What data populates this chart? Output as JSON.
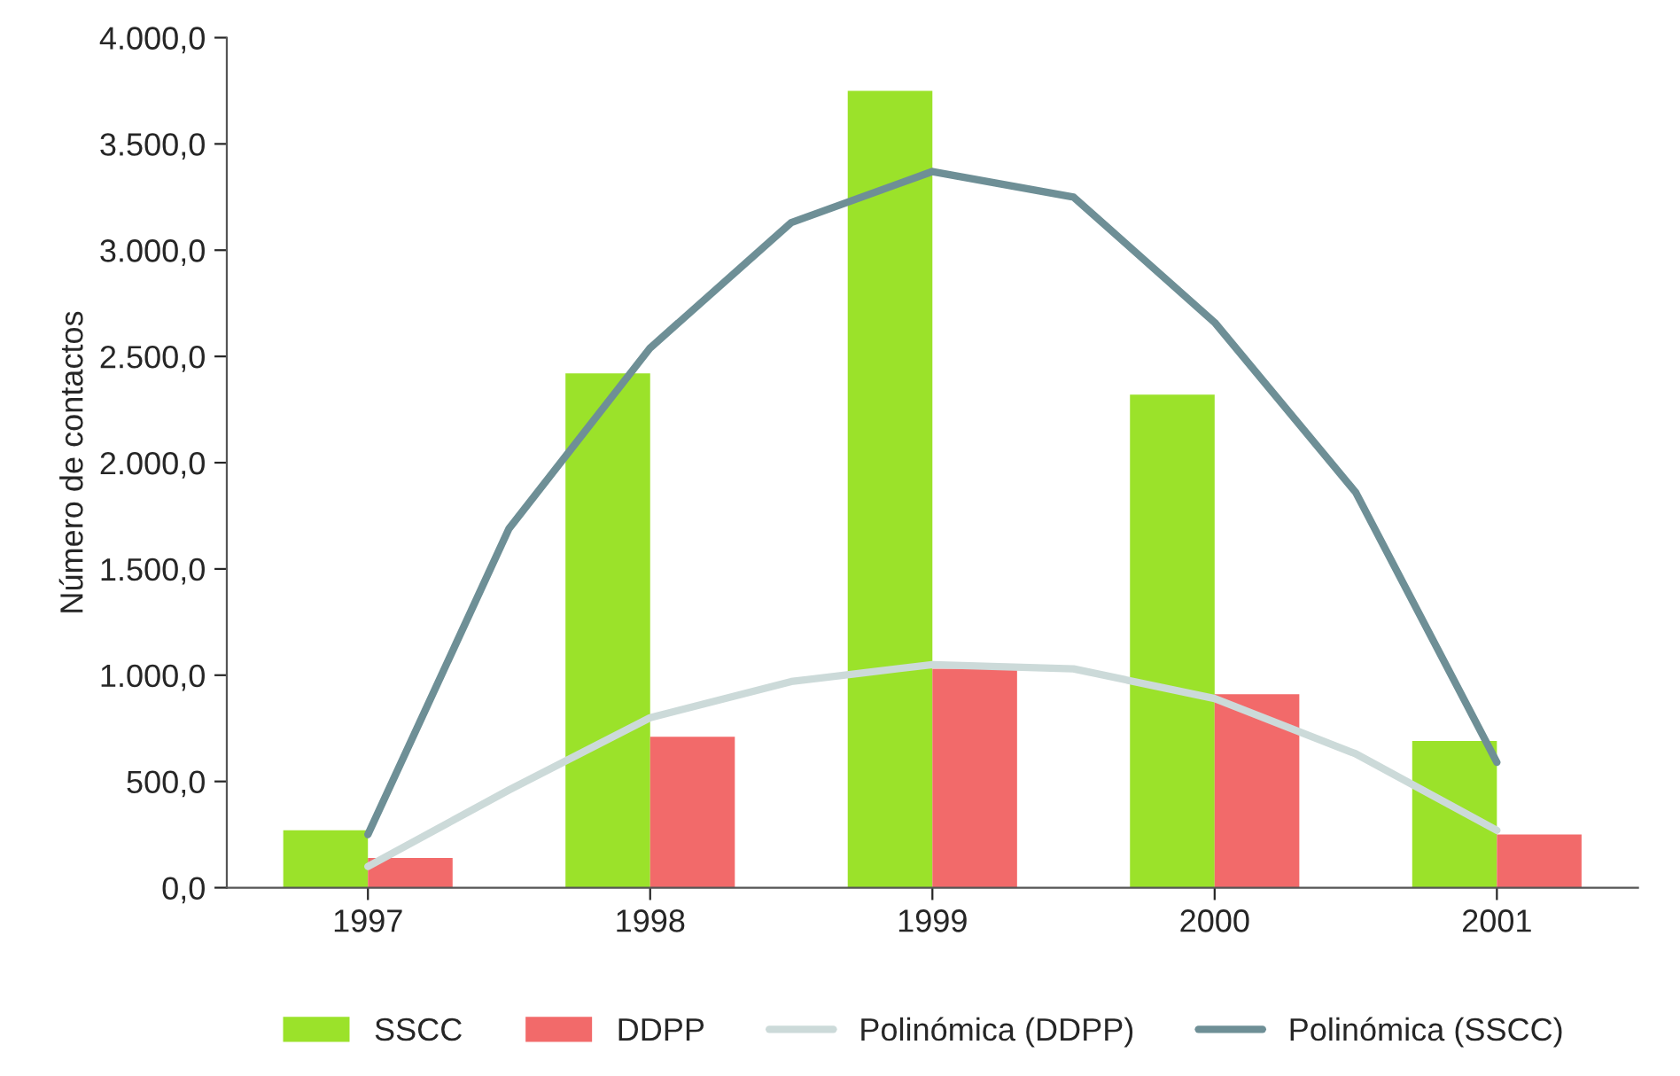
{
  "chart_data": {
    "type": "bar",
    "ylabel": "Número de contactos",
    "x": [
      1997,
      1998,
      1999,
      2000,
      2001
    ],
    "series": [
      {
        "name": "SSCC",
        "color": "#9be22a",
        "values": [
          270,
          2420,
          3750,
          2320,
          690
        ]
      },
      {
        "name": "DDPP",
        "color": "#f26a6a",
        "values": [
          140,
          710,
          1030,
          910,
          250
        ]
      },
      {
        "name": "Polinómica (DDPP)",
        "type": "line",
        "color": "#ccdad9",
        "x": [
          1997,
          1997.5,
          1998,
          1998.5,
          1999,
          1999.5,
          2000,
          2000.5,
          2001
        ],
        "values": [
          100,
          460,
          800,
          970,
          1050,
          1030,
          890,
          630,
          270
        ]
      },
      {
        "name": "Polinómica (SSCC)",
        "type": "line",
        "color": "#6e8f96",
        "x": [
          1997,
          1997.5,
          1998,
          1998.5,
          1999,
          1999.5,
          2000,
          2000.5,
          2001
        ],
        "values": [
          250,
          1690,
          2540,
          3130,
          3370,
          3250,
          2660,
          1860,
          590
        ]
      }
    ],
    "xlim": [
      1996.5,
      2001.5
    ],
    "xticks": [
      1997,
      1998,
      1999,
      2000,
      2001
    ],
    "ylim": [
      0,
      4000
    ],
    "yticks": [
      {
        "value": 0,
        "label": "0,0"
      },
      {
        "value": 500,
        "label": "500,0"
      },
      {
        "value": 1000,
        "label": "1.000,0"
      },
      {
        "value": 1500,
        "label": "1.500,0"
      },
      {
        "value": 2000,
        "label": "2.000,0"
      },
      {
        "value": 2500,
        "label": "2.500,0"
      },
      {
        "value": 3000,
        "label": "3.000,0"
      },
      {
        "value": 3500,
        "label": "3.500,0"
      },
      {
        "value": 4000,
        "label": "4.000,0"
      }
    ],
    "grid": false,
    "legend": "bottom"
  }
}
